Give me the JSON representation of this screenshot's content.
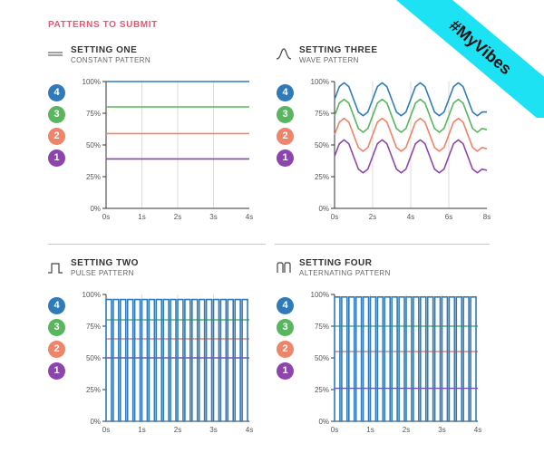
{
  "header": {
    "title": "PATTERNS TO SUBMIT",
    "ribbon_text": "#MyVibes"
  },
  "badge_labels": [
    "4",
    "3",
    "2",
    "1"
  ],
  "colors": {
    "series_4": "#2f7bb9",
    "series_3": "#58b65e",
    "series_2": "#ef8469",
    "series_1": "#8e44ad",
    "accent": "#e05a73",
    "ribbon": "#1de2f4",
    "grid": "#dddddd",
    "axis": "#333333"
  },
  "panels": [
    {
      "title": "SETTING ONE",
      "subtitle": "CONSTANT PATTERN",
      "icon": "constant-pattern-icon"
    },
    {
      "title": "SETTING THREE",
      "subtitle": "WAVE PATTERN",
      "icon": "wave-pattern-icon"
    },
    {
      "title": "SETTING TWO",
      "subtitle": "PULSE PATTERN",
      "icon": "pulse-pattern-icon"
    },
    {
      "title": "SETTING FOUR",
      "subtitle": "ALTERNATING PATTERN",
      "icon": "alternating-pattern-icon"
    }
  ],
  "chart_data": [
    {
      "type": "line",
      "title": "SETTING ONE",
      "subtitle": "CONSTANT PATTERN",
      "x_ticks": [
        "0s",
        "1s",
        "2s",
        "3s",
        "4s"
      ],
      "y_ticks": [
        "0%",
        "25%",
        "50%",
        "75%",
        "100%"
      ],
      "xlim": [
        0,
        4
      ],
      "ylim": [
        0,
        100
      ],
      "grid": true,
      "series": [
        {
          "name": "4",
          "x": [
            0,
            4
          ],
          "y": [
            100,
            100
          ]
        },
        {
          "name": "3",
          "x": [
            0,
            4
          ],
          "y": [
            80,
            80
          ]
        },
        {
          "name": "2",
          "x": [
            0,
            4
          ],
          "y": [
            59,
            59
          ]
        },
        {
          "name": "1",
          "x": [
            0,
            4
          ],
          "y": [
            39,
            39
          ]
        }
      ]
    },
    {
      "type": "line",
      "title": "SETTING THREE",
      "subtitle": "WAVE PATTERN",
      "x_ticks": [
        "0s",
        "2s",
        "4s",
        "6s",
        "8s"
      ],
      "y_ticks": [
        "0%",
        "25%",
        "50%",
        "75%",
        "100%"
      ],
      "xlim": [
        0,
        8
      ],
      "ylim": [
        0,
        100
      ],
      "grid": true,
      "series": [
        {
          "name": "4",
          "x": [
            0,
            0.25,
            0.5,
            0.75,
            1,
            1.25,
            1.5,
            1.75,
            2,
            2.25,
            2.5,
            2.75,
            3,
            3.25,
            3.5,
            3.75,
            4,
            4.25,
            4.5,
            4.75,
            5,
            5.25,
            5.5,
            5.75,
            6,
            6.25,
            6.5,
            6.75,
            7,
            7.25,
            7.5,
            7.75,
            8
          ],
          "y": [
            86,
            96,
            99,
            96,
            86,
            76,
            73,
            76,
            86,
            96,
            99,
            96,
            86,
            76,
            73,
            76,
            86,
            96,
            99,
            96,
            86,
            76,
            73,
            76,
            86,
            96,
            99,
            96,
            86,
            76,
            73,
            76,
            76
          ]
        },
        {
          "name": "3",
          "x": [
            0,
            0.25,
            0.5,
            0.75,
            1,
            1.25,
            1.5,
            1.75,
            2,
            2.25,
            2.5,
            2.75,
            3,
            3.25,
            3.5,
            3.75,
            4,
            4.25,
            4.5,
            4.75,
            5,
            5.25,
            5.5,
            5.75,
            6,
            6.25,
            6.5,
            6.75,
            7,
            7.25,
            7.5,
            7.75,
            8
          ],
          "y": [
            73,
            83,
            86,
            83,
            73,
            63,
            60,
            63,
            73,
            83,
            86,
            83,
            73,
            63,
            60,
            63,
            73,
            83,
            86,
            83,
            73,
            63,
            60,
            63,
            73,
            83,
            86,
            83,
            73,
            63,
            60,
            63,
            62
          ]
        },
        {
          "name": "2",
          "x": [
            0,
            0.25,
            0.5,
            0.75,
            1,
            1.25,
            1.5,
            1.75,
            2,
            2.25,
            2.5,
            2.75,
            3,
            3.25,
            3.5,
            3.75,
            4,
            4.25,
            4.5,
            4.75,
            5,
            5.25,
            5.5,
            5.75,
            6,
            6.25,
            6.5,
            6.75,
            7,
            7.25,
            7.5,
            7.75,
            8
          ],
          "y": [
            58,
            68,
            71,
            68,
            58,
            48,
            45,
            48,
            58,
            68,
            71,
            68,
            58,
            48,
            45,
            48,
            58,
            68,
            71,
            68,
            58,
            48,
            45,
            48,
            58,
            68,
            71,
            68,
            58,
            48,
            45,
            48,
            47
          ]
        },
        {
          "name": "1",
          "x": [
            0,
            0.25,
            0.5,
            0.75,
            1,
            1.25,
            1.5,
            1.75,
            2,
            2.25,
            2.5,
            2.75,
            3,
            3.25,
            3.5,
            3.75,
            4,
            4.25,
            4.5,
            4.75,
            5,
            5.25,
            5.5,
            5.75,
            6,
            6.25,
            6.5,
            6.75,
            7,
            7.25,
            7.5,
            7.75,
            8
          ],
          "y": [
            41,
            51,
            54,
            51,
            41,
            31,
            28,
            31,
            41,
            51,
            54,
            51,
            41,
            31,
            28,
            31,
            41,
            51,
            54,
            51,
            41,
            31,
            28,
            31,
            41,
            51,
            54,
            51,
            41,
            31,
            28,
            31,
            30
          ]
        }
      ]
    },
    {
      "type": "line",
      "title": "SETTING TWO",
      "subtitle": "PULSE PATTERN",
      "x_ticks": [
        "0s",
        "1s",
        "2s",
        "3s",
        "4s"
      ],
      "y_ticks": [
        "0%",
        "25%",
        "50%",
        "75%",
        "100%"
      ],
      "xlim": [
        0,
        4
      ],
      "ylim": [
        0,
        100
      ],
      "grid": true,
      "pulse": {
        "count": 20,
        "duty": 0.75
      },
      "series": [
        {
          "name": "4",
          "level": 96
        },
        {
          "name": "3",
          "level": 80
        },
        {
          "name": "2",
          "level": 65
        },
        {
          "name": "1",
          "level": 50
        }
      ]
    },
    {
      "type": "line",
      "title": "SETTING FOUR",
      "subtitle": "ALTERNATING PATTERN",
      "x_ticks": [
        "0s",
        "1s",
        "2s",
        "3s",
        "4s"
      ],
      "y_ticks": [
        "0%",
        "25%",
        "50%",
        "75%",
        "100%"
      ],
      "xlim": [
        0,
        4
      ],
      "ylim": [
        0,
        100
      ],
      "grid": true,
      "pulse": {
        "count": 20,
        "duty": 0.75
      },
      "series": [
        {
          "name": "4",
          "level": 98
        },
        {
          "name": "3",
          "level": 75
        },
        {
          "name": "2",
          "level": 55
        },
        {
          "name": "1",
          "level": 26
        }
      ]
    }
  ]
}
